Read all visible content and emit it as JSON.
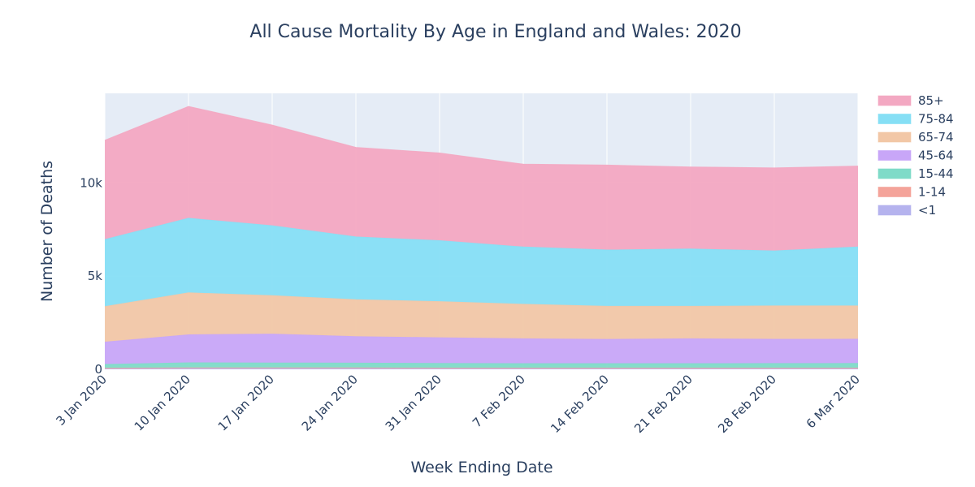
{
  "chart_data": {
    "type": "area",
    "stacked": true,
    "title": "All Cause Mortality By Age in England and Wales: 2020",
    "xlabel": "Week Ending Date",
    "ylabel": "Number of Deaths",
    "ylim": [
      0,
      14800
    ],
    "yticks": [
      0,
      5000,
      10000
    ],
    "ytick_labels": [
      "0",
      "5k",
      "10k"
    ],
    "grid": true,
    "legend_position": "right",
    "categories": [
      "3 Jan 2020",
      "10 Jan 2020",
      "17 Jan 2020",
      "24 Jan 2020",
      "31 Jan 2020",
      "7 Feb 2020",
      "14 Feb 2020",
      "21 Feb 2020",
      "28 Feb 2020",
      "6 Mar 2020"
    ],
    "series": [
      {
        "name": "<1",
        "color": "#b5b3ee",
        "values": [
          40,
          55,
          50,
          50,
          45,
          45,
          45,
          45,
          45,
          45
        ]
      },
      {
        "name": "1-14",
        "color": "#f4a39a",
        "values": [
          20,
          25,
          25,
          25,
          20,
          20,
          20,
          20,
          20,
          20
        ]
      },
      {
        "name": "15-44",
        "color": "#7fdbc8",
        "values": [
          200,
          270,
          265,
          255,
          250,
          240,
          240,
          240,
          245,
          250
        ]
      },
      {
        "name": "45-64",
        "color": "#c8a6f8",
        "values": [
          1200,
          1500,
          1550,
          1420,
          1380,
          1330,
          1300,
          1330,
          1300,
          1300
        ]
      },
      {
        "name": "65-74",
        "color": "#f2c7a6",
        "values": [
          1900,
          2250,
          2060,
          1980,
          1935,
          1850,
          1775,
          1745,
          1790,
          1785
        ]
      },
      {
        "name": "75-84",
        "color": "#86dff5",
        "values": [
          3600,
          4000,
          3750,
          3370,
          3270,
          3075,
          3020,
          3070,
          2950,
          3160
        ]
      },
      {
        "name": "85+",
        "color": "#f3a8c2",
        "values": [
          5320,
          6000,
          5400,
          4800,
          4700,
          4440,
          4550,
          4400,
          4450,
          4340
        ]
      }
    ],
    "colors": {
      "plot_background": "#e5ecf6",
      "grid": "#ffffff",
      "text": "#2a3f5f"
    }
  }
}
